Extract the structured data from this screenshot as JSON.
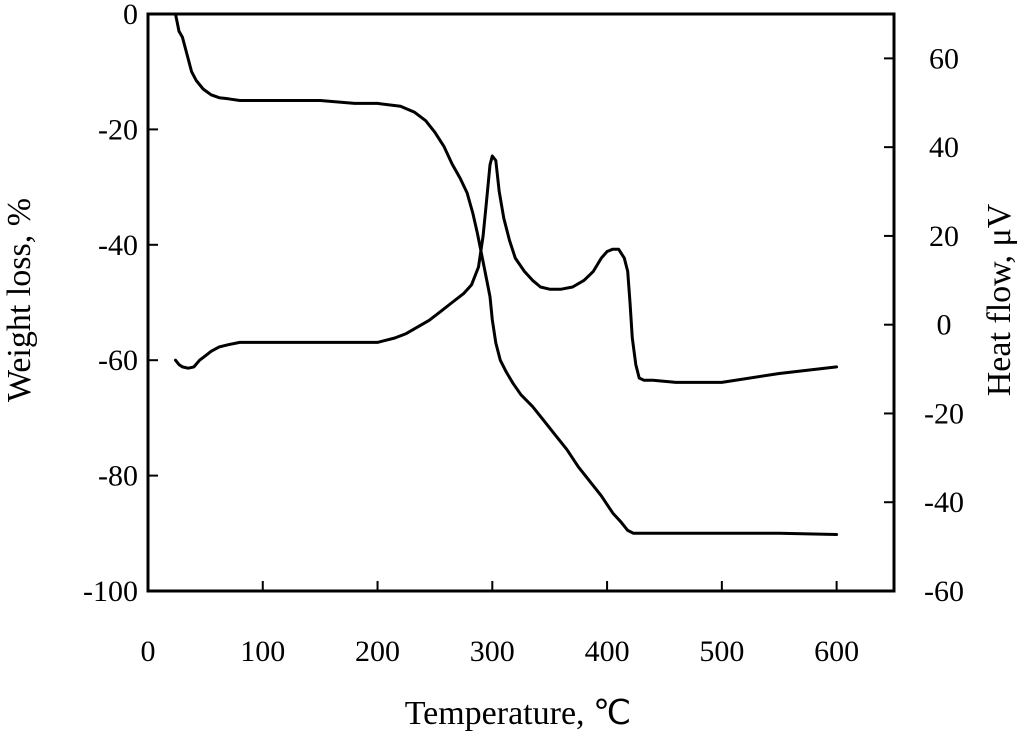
{
  "chart_data": {
    "type": "line",
    "title": "",
    "xlabel": "Temperature, ℃",
    "ylabel_left": "Weight loss, %",
    "ylabel_right": "Heat flow, μV",
    "xlim": [
      0,
      650
    ],
    "ylim_left": [
      -100,
      0
    ],
    "ylim_right": [
      -60,
      70
    ],
    "x_ticks": [
      0,
      100,
      200,
      300,
      400,
      500,
      600
    ],
    "y_left_ticks": [
      0,
      -20,
      -40,
      -60,
      -80,
      -100
    ],
    "y_right_ticks": [
      60,
      40,
      20,
      0,
      -20,
      -40,
      -60
    ],
    "grid": false,
    "legend": "none",
    "series": [
      {
        "axis": "left",
        "x": [
          24,
          27,
          30,
          34,
          38,
          42,
          48,
          55,
          62,
          70,
          80,
          100,
          150,
          180,
          200,
          220,
          232,
          242,
          250,
          258,
          265,
          272,
          278,
          283,
          287,
          291,
          295,
          298,
          300,
          303,
          307,
          312,
          318,
          325,
          335,
          345,
          355,
          365,
          375,
          385,
          395,
          405,
          412,
          418,
          423,
          430,
          450,
          500,
          550,
          600
        ],
        "y": [
          0,
          -3,
          -4,
          -7,
          -10,
          -11.5,
          -13,
          -14,
          -14.5,
          -14.7,
          -15,
          -15,
          -15,
          -15.5,
          -15.5,
          -16,
          -17,
          -18.5,
          -20.5,
          -23,
          -26,
          -28.5,
          -31,
          -34.5,
          -38,
          -42,
          -46,
          -49,
          -53,
          -57,
          -60,
          -62,
          -64,
          -66,
          -68,
          -70.5,
          -73,
          -75.5,
          -78.5,
          -81,
          -83.5,
          -86.5,
          -88,
          -89.5,
          -90,
          -90,
          -90,
          -90,
          -90,
          -90.2
        ]
      },
      {
        "axis": "right",
        "x": [
          24,
          27,
          30,
          35,
          40,
          45,
          50,
          55,
          62,
          70,
          80,
          100,
          150,
          200,
          215,
          225,
          235,
          245,
          255,
          265,
          275,
          282,
          288,
          292,
          295,
          298,
          300,
          303,
          306,
          310,
          315,
          320,
          328,
          335,
          342,
          350,
          360,
          370,
          380,
          388,
          395,
          400,
          405,
          410,
          415,
          418,
          420,
          422,
          425,
          428,
          432,
          440,
          460,
          500,
          550,
          600
        ],
        "y": [
          -8,
          -9,
          -9.5,
          -9.8,
          -9.5,
          -8,
          -7,
          -6,
          -5,
          -4.5,
          -4,
          -4,
          -4,
          -4,
          -3,
          -2,
          -0.5,
          1,
          3,
          5,
          7,
          9,
          13,
          20,
          28,
          36,
          38,
          37,
          30,
          24,
          19,
          15,
          12,
          10,
          8.5,
          8,
          8,
          8.5,
          10,
          12,
          15,
          16.5,
          17,
          17,
          15,
          12,
          5,
          -3,
          -9,
          -12,
          -12.5,
          -12.5,
          -13,
          -13,
          -11,
          -9.5
        ]
      }
    ]
  }
}
